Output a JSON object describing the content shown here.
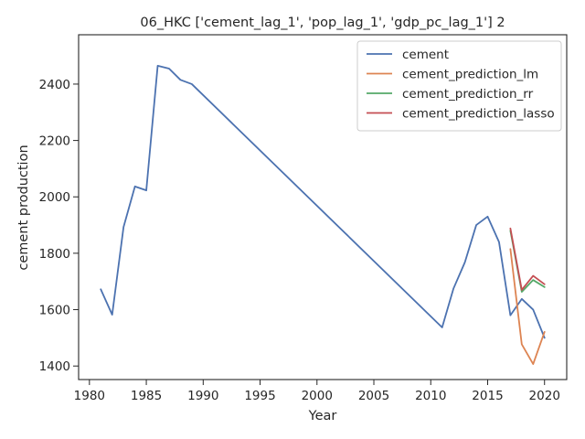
{
  "chart_data": {
    "type": "line",
    "title": "06_HKC ['cement_lag_1', 'pop_lag_1', 'gdp_pc_lag_1'] 2",
    "xlabel": "Year",
    "ylabel": "cement production",
    "xlim": [
      1979.05,
      2021.95
    ],
    "ylim": [
      1352,
      2575
    ],
    "xticks": [
      1980,
      1985,
      1990,
      1995,
      2000,
      2005,
      2010,
      2015,
      2020
    ],
    "yticks": [
      1400,
      1600,
      1800,
      2000,
      2200,
      2400
    ],
    "legend_position": "upper right",
    "grid": false,
    "series": [
      {
        "name": "cement",
        "color": "#4c72b0",
        "x": [
          1981,
          1982,
          1983,
          1984,
          1985,
          1986,
          1987,
          1988,
          1989,
          2011,
          2012,
          2013,
          2014,
          2015,
          2016,
          2017,
          2018,
          2019,
          2020
        ],
        "y": [
          1672,
          1582,
          1893,
          2037,
          2023,
          2465,
          2455,
          2415,
          2400,
          1537,
          1675,
          1768,
          1900,
          1930,
          1840,
          1580,
          1638,
          1600,
          1500
        ]
      },
      {
        "name": "cement_prediction_lm",
        "color": "#dd8452",
        "x": [
          2017,
          2018,
          2019,
          2020
        ],
        "y": [
          1815,
          1477,
          1407,
          1521
        ]
      },
      {
        "name": "cement_prediction_rr",
        "color": "#55a868",
        "x": [
          2017,
          2018,
          2019,
          2020
        ],
        "y": [
          1880,
          1663,
          1705,
          1680
        ]
      },
      {
        "name": "cement_prediction_lasso",
        "color": "#c44e52",
        "x": [
          2017,
          2018,
          2019,
          2020
        ],
        "y": [
          1888,
          1670,
          1720,
          1690
        ]
      }
    ]
  }
}
